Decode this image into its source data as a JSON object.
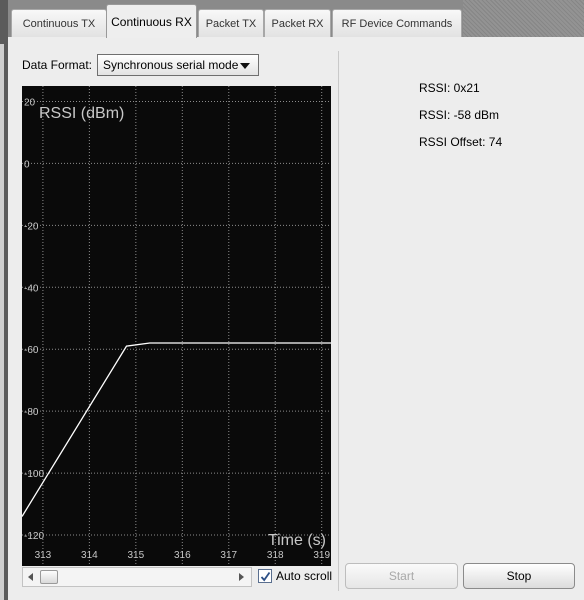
{
  "tabs": [
    {
      "label": "Continuous TX",
      "active": false
    },
    {
      "label": "Continuous RX",
      "active": true
    },
    {
      "label": "Packet TX",
      "active": false
    },
    {
      "label": "Packet RX",
      "active": false
    },
    {
      "label": "RF Device Commands",
      "active": false
    }
  ],
  "data_format": {
    "label": "Data Format:",
    "selected": "Synchronous serial mode"
  },
  "rssi": {
    "hex": "RSSI: 0x21",
    "dbm": "RSSI: -58 dBm",
    "offset": "RSSI Offset: 74"
  },
  "controls": {
    "auto_scroll_label": "Auto scroll",
    "auto_scroll_checked": true,
    "start_label": "Start",
    "stop_label": "Stop"
  },
  "colors": {
    "plot_bg": "#0a0a0a",
    "grid": "#8c8c8c",
    "line": "#ffffff",
    "axis_text": "#c8c8c8"
  },
  "chart_data": {
    "type": "line",
    "title": "RSSI (dBm)",
    "xlabel": "Time (s)",
    "ylabel": "",
    "xlim": [
      312.55,
      319.2
    ],
    "ylim": [
      -130,
      25
    ],
    "x_ticks": [
      313,
      314,
      315,
      316,
      317,
      318,
      319
    ],
    "y_ticks": [
      20,
      0,
      -20,
      -40,
      -60,
      -80,
      -100,
      -120
    ],
    "grid": true,
    "series": [
      {
        "x": [
          312.55,
          314.8,
          315.3,
          316.5,
          319.2
        ],
        "y": [
          -114,
          -59,
          -58,
          -58,
          -58
        ]
      }
    ]
  }
}
